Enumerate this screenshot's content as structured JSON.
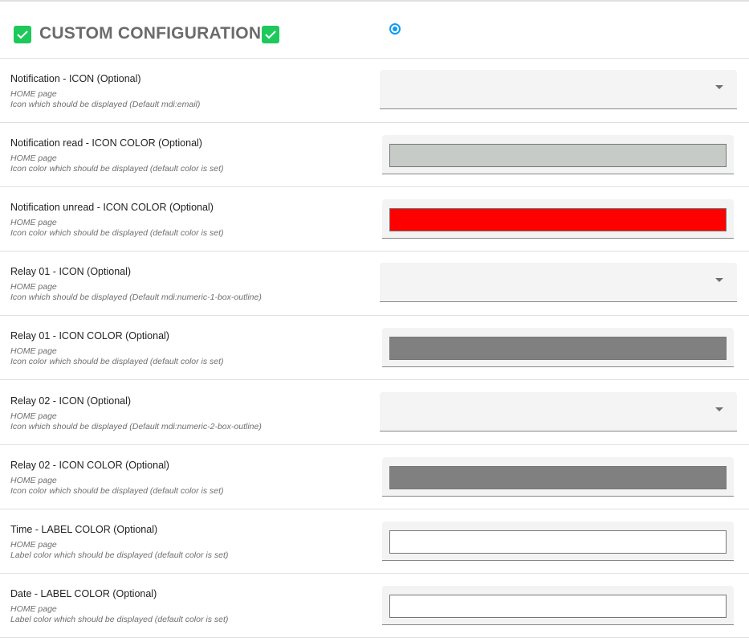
{
  "header": {
    "title": "CUSTOM CONFIGURATION",
    "check_icon": "check-box-icon",
    "check_color": "#1ec95b",
    "radio_selected": true
  },
  "rows": [
    {
      "label": "Notification - ICON (Optional)",
      "page": "HOME page",
      "desc": "Icon which should be displayed (Default mdi:email)",
      "type": "select",
      "value": ""
    },
    {
      "label": "Notification read - ICON COLOR (Optional)",
      "page": "HOME page",
      "desc": "Icon color which should be displayed (default color is set)",
      "type": "color",
      "value": "#c6cbc7"
    },
    {
      "label": "Notification unread - ICON COLOR (Optional)",
      "page": "HOME page",
      "desc": "Icon color which should be displayed (default color is set)",
      "type": "color",
      "value": "#ff0000"
    },
    {
      "label": "Relay 01 - ICON (Optional)",
      "page": "HOME page",
      "desc": "Icon which should be displayed (Default mdi:numeric-1-box-outline)",
      "type": "select",
      "value": ""
    },
    {
      "label": "Relay 01 - ICON COLOR (Optional)",
      "page": "HOME page",
      "desc": "Icon color which should be displayed (default color is set)",
      "type": "color",
      "value": "#808080"
    },
    {
      "label": "Relay 02 - ICON (Optional)",
      "page": "HOME page",
      "desc": "Icon which should be displayed (Default mdi:numeric-2-box-outline)",
      "type": "select",
      "value": ""
    },
    {
      "label": "Relay 02 - ICON COLOR (Optional)",
      "page": "HOME page",
      "desc": "Icon color which should be displayed (default color is set)",
      "type": "color",
      "value": "#808080"
    },
    {
      "label": "Time - LABEL COLOR (Optional)",
      "page": "HOME page",
      "desc": "Label color which should be displayed (default color is set)",
      "type": "color",
      "value": "#ffffff"
    },
    {
      "label": "Date - LABEL COLOR (Optional)",
      "page": "HOME page",
      "desc": "Label color which should be displayed (default color is set)",
      "type": "color",
      "value": "#ffffff"
    }
  ]
}
